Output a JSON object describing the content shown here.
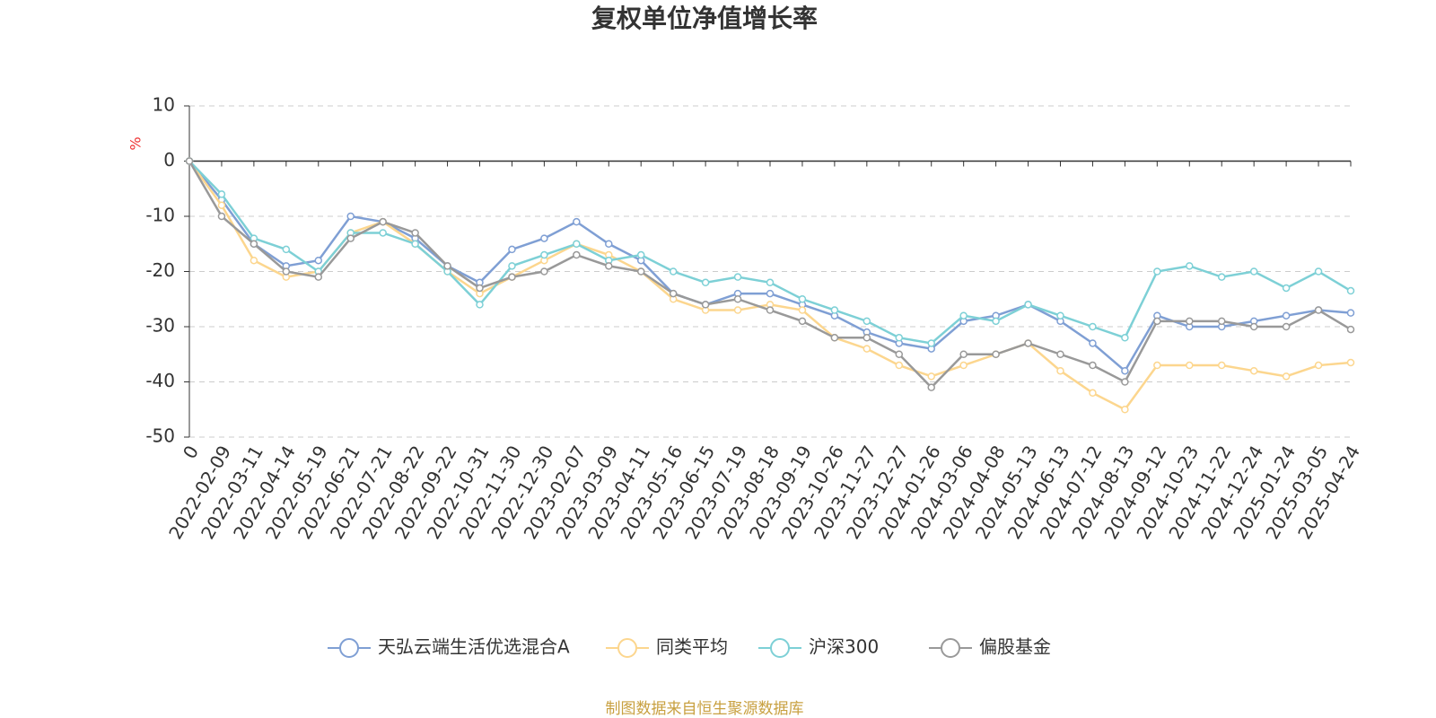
{
  "chart_data": {
    "type": "line",
    "title": "复权单位净值增长率",
    "y_label": "%",
    "source": "制图数据来自恒生聚源数据库",
    "categories": [
      "0",
      "2022-02-09",
      "2022-03-11",
      "2022-04-14",
      "2022-05-19",
      "2022-06-21",
      "2022-07-21",
      "2022-08-22",
      "2022-09-22",
      "2022-10-31",
      "2022-11-30",
      "2022-12-30",
      "2023-02-07",
      "2023-03-09",
      "2023-04-11",
      "2023-05-16",
      "2023-06-15",
      "2023-07-19",
      "2023-08-18",
      "2023-09-19",
      "2023-10-26",
      "2023-11-27",
      "2023-12-27",
      "2024-01-26",
      "2024-03-06",
      "2024-04-08",
      "2024-05-13",
      "2024-06-13",
      "2024-07-12",
      "2024-08-13",
      "2024-09-12",
      "2024-10-23",
      "2024-11-22",
      "2024-12-24",
      "2025-01-24",
      "2025-03-05",
      "2025-04-24"
    ],
    "series": [
      {
        "name": "天弘云端生活优选混合A",
        "color": "#7f9fd4",
        "values": [
          0,
          -7,
          -15,
          -19,
          -18,
          -10,
          -11,
          -14,
          -19,
          -22,
          -16,
          -14,
          -11,
          -15,
          -18,
          -24,
          -26,
          -24,
          -24,
          -26,
          -28,
          -31,
          -33,
          -34,
          -29,
          -28,
          -26,
          -29,
          -33,
          -38,
          -28,
          -30,
          -30,
          -29,
          -28,
          -27,
          -27.5
        ]
      },
      {
        "name": "同类平均",
        "color": "#fcd68e",
        "values": [
          0,
          -8,
          -18,
          -21,
          -20,
          -13,
          -11,
          -15,
          -20,
          -24,
          -21,
          -18,
          -15,
          -17,
          -20,
          -25,
          -27,
          -27,
          -26,
          -27,
          -32,
          -34,
          -37,
          -39,
          -37,
          -35,
          -33,
          -38,
          -42,
          -45,
          -37,
          -37,
          -37,
          -38,
          -39,
          -37,
          -36.5
        ]
      },
      {
        "name": "沪深300",
        "color": "#7dd0d6",
        "values": [
          0,
          -6,
          -14,
          -16,
          -20,
          -13,
          -13,
          -15,
          -20,
          -26,
          -19,
          -17,
          -15,
          -18,
          -17,
          -20,
          -22,
          -21,
          -22,
          -25,
          -27,
          -29,
          -32,
          -33,
          -28,
          -29,
          -26,
          -28,
          -30,
          -32,
          -20,
          -19,
          -21,
          -20,
          -23,
          -20,
          -23.5
        ]
      },
      {
        "name": "偏股基金",
        "color": "#999999",
        "values": [
          0,
          -10,
          -15,
          -20,
          -21,
          -14,
          -11,
          -13,
          -19,
          -23,
          -21,
          -20,
          -17,
          -19,
          -20,
          -24,
          -26,
          -25,
          -27,
          -29,
          -32,
          -32,
          -35,
          -41,
          -35,
          -35,
          -33,
          -35,
          -37,
          -40,
          -29,
          -29,
          -29,
          -30,
          -30,
          -27,
          -30.5
        ]
      }
    ],
    "ylim": [
      -50,
      10
    ],
    "yticks": [
      10,
      0,
      -10,
      -20,
      -30,
      -40,
      -50
    ],
    "grid": true
  }
}
